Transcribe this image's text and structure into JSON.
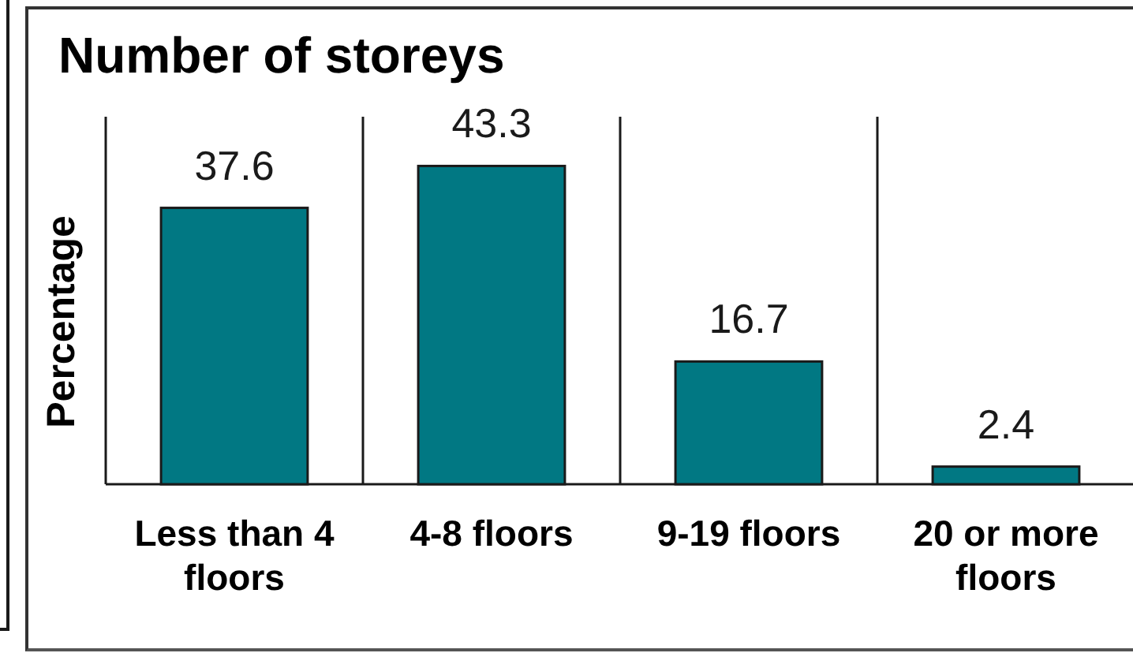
{
  "chart_data": {
    "type": "bar",
    "title": "Number of storeys",
    "ylabel": "Percentage",
    "categories": [
      "Less than 4 floors",
      "4-8 floors",
      "9-19 floors",
      "20 or more floors"
    ],
    "values": [
      37.6,
      43.3,
      16.7,
      2.4
    ],
    "color": "#017883",
    "data_labels": true,
    "grid": "x"
  }
}
